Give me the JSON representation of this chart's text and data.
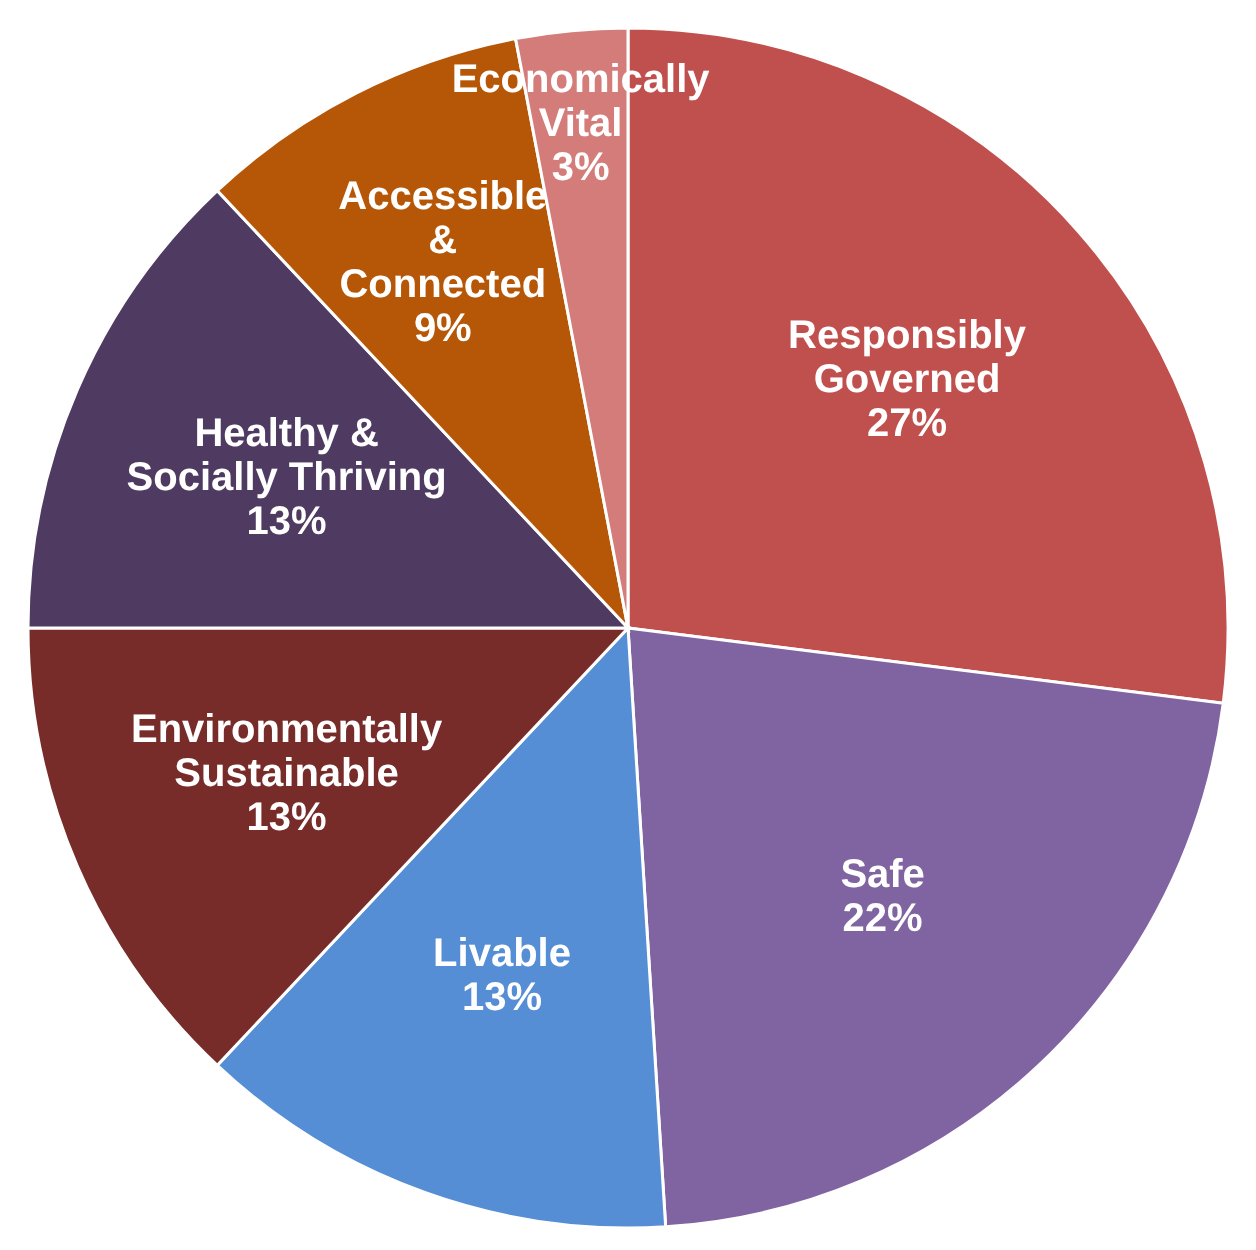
{
  "chart_data": {
    "type": "pie",
    "categories": [
      "Responsibly Governed",
      "Safe",
      "Livable",
      "Environmentally Sustainable",
      "Healthy & Socially Thriving",
      "Accessible & Connected",
      "Economically Vital"
    ],
    "values": [
      27,
      22,
      13,
      13,
      13,
      9,
      3
    ],
    "colors": [
      "#c0504d",
      "#8064a2",
      "#558ed5",
      "#772c2a",
      "#4f3b62",
      "#b65708",
      "#d47c7a"
    ],
    "value_labels": [
      "27%",
      "22%",
      "13%",
      "13%",
      "13%",
      "9%",
      "3%"
    ]
  }
}
